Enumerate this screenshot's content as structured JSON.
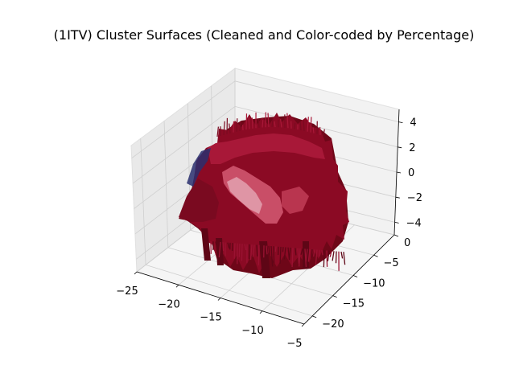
{
  "chart_data": {
    "type": "3d-surface",
    "title": "(1ITV) Cluster Surfaces (Cleaned and Color-coded by Percentage)",
    "xlabel": "",
    "ylabel": "",
    "zlabel": "",
    "x_ticks": [
      "−25",
      "−20",
      "−15",
      "−10",
      "−5"
    ],
    "y_ticks": [
      "−20",
      "−15",
      "−10",
      "−5",
      "0"
    ],
    "z_ticks": [
      "−4",
      "−2",
      "0",
      "2",
      "4"
    ],
    "xlim": [
      -25,
      -5
    ],
    "ylim": [
      -22,
      0
    ],
    "zlim": [
      -5,
      5
    ],
    "grid": true,
    "colors": {
      "surface_primary": "#8b0a24",
      "surface_dark": "#5e0616",
      "surface_light": "#c4405a",
      "surface_highlight": "#e8b4c0",
      "surface_edge_blue": "#2a2f6e",
      "pane_back": "#f2f2f2",
      "pane_side": "#e9e9e9",
      "pane_floor": "#f5f5f5",
      "grid": "#cfcfcf"
    },
    "surfaces": [
      {
        "x_range": [
          -25,
          -5
        ],
        "y_range": [
          -20,
          0
        ],
        "z_range": [
          -5,
          5
        ],
        "color": "#8b0a24"
      }
    ]
  }
}
